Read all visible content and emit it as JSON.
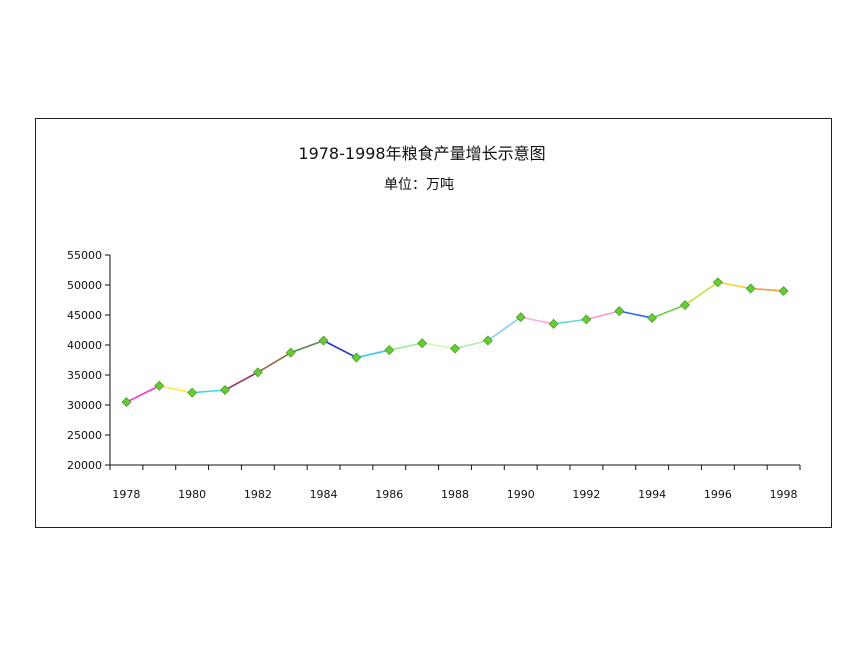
{
  "chart_data": {
    "type": "line",
    "title": "1978-1998年粮食产量增长示意图",
    "subtitle": "单位：万吨",
    "xlabel": "",
    "ylabel": "",
    "x": [
      1978,
      1979,
      1980,
      1981,
      1982,
      1983,
      1984,
      1985,
      1986,
      1987,
      1988,
      1989,
      1990,
      1991,
      1992,
      1993,
      1994,
      1995,
      1996,
      1997,
      1998
    ],
    "x_tick_labels": [
      "1978",
      "1980",
      "1982",
      "1984",
      "1986",
      "1988",
      "1990",
      "1992",
      "1994",
      "1996",
      "1998"
    ],
    "y_tick_labels": [
      "20000",
      "25000",
      "30000",
      "35000",
      "40000",
      "45000",
      "50000",
      "55000"
    ],
    "ylim": [
      20000,
      55000
    ],
    "grid": false,
    "legend": "none",
    "series": [
      {
        "values": [
          30477,
          33212,
          32056,
          32502,
          35450,
          38728,
          40731,
          37911,
          39151,
          40298,
          39408,
          40755,
          44624,
          43529,
          44266,
          45649,
          44510,
          46662,
          50454,
          49417,
          49000
        ]
      }
    ],
    "colors": {
      "marker": "#66cc33",
      "segments": [
        "#ff33cc",
        "#ffee33",
        "#33ddee",
        "#993366",
        "#8b6a3a",
        "#558844",
        "#2233cc",
        "#33ccee",
        "#99ee99",
        "#ccffaa",
        "#aaeeaa",
        "#88ccff",
        "#ffaadd",
        "#66ddcc",
        "#ff99cc",
        "#3366ff",
        "#66cc44",
        "#ccdd33",
        "#ffcc33",
        "#ff9933"
      ]
    }
  }
}
